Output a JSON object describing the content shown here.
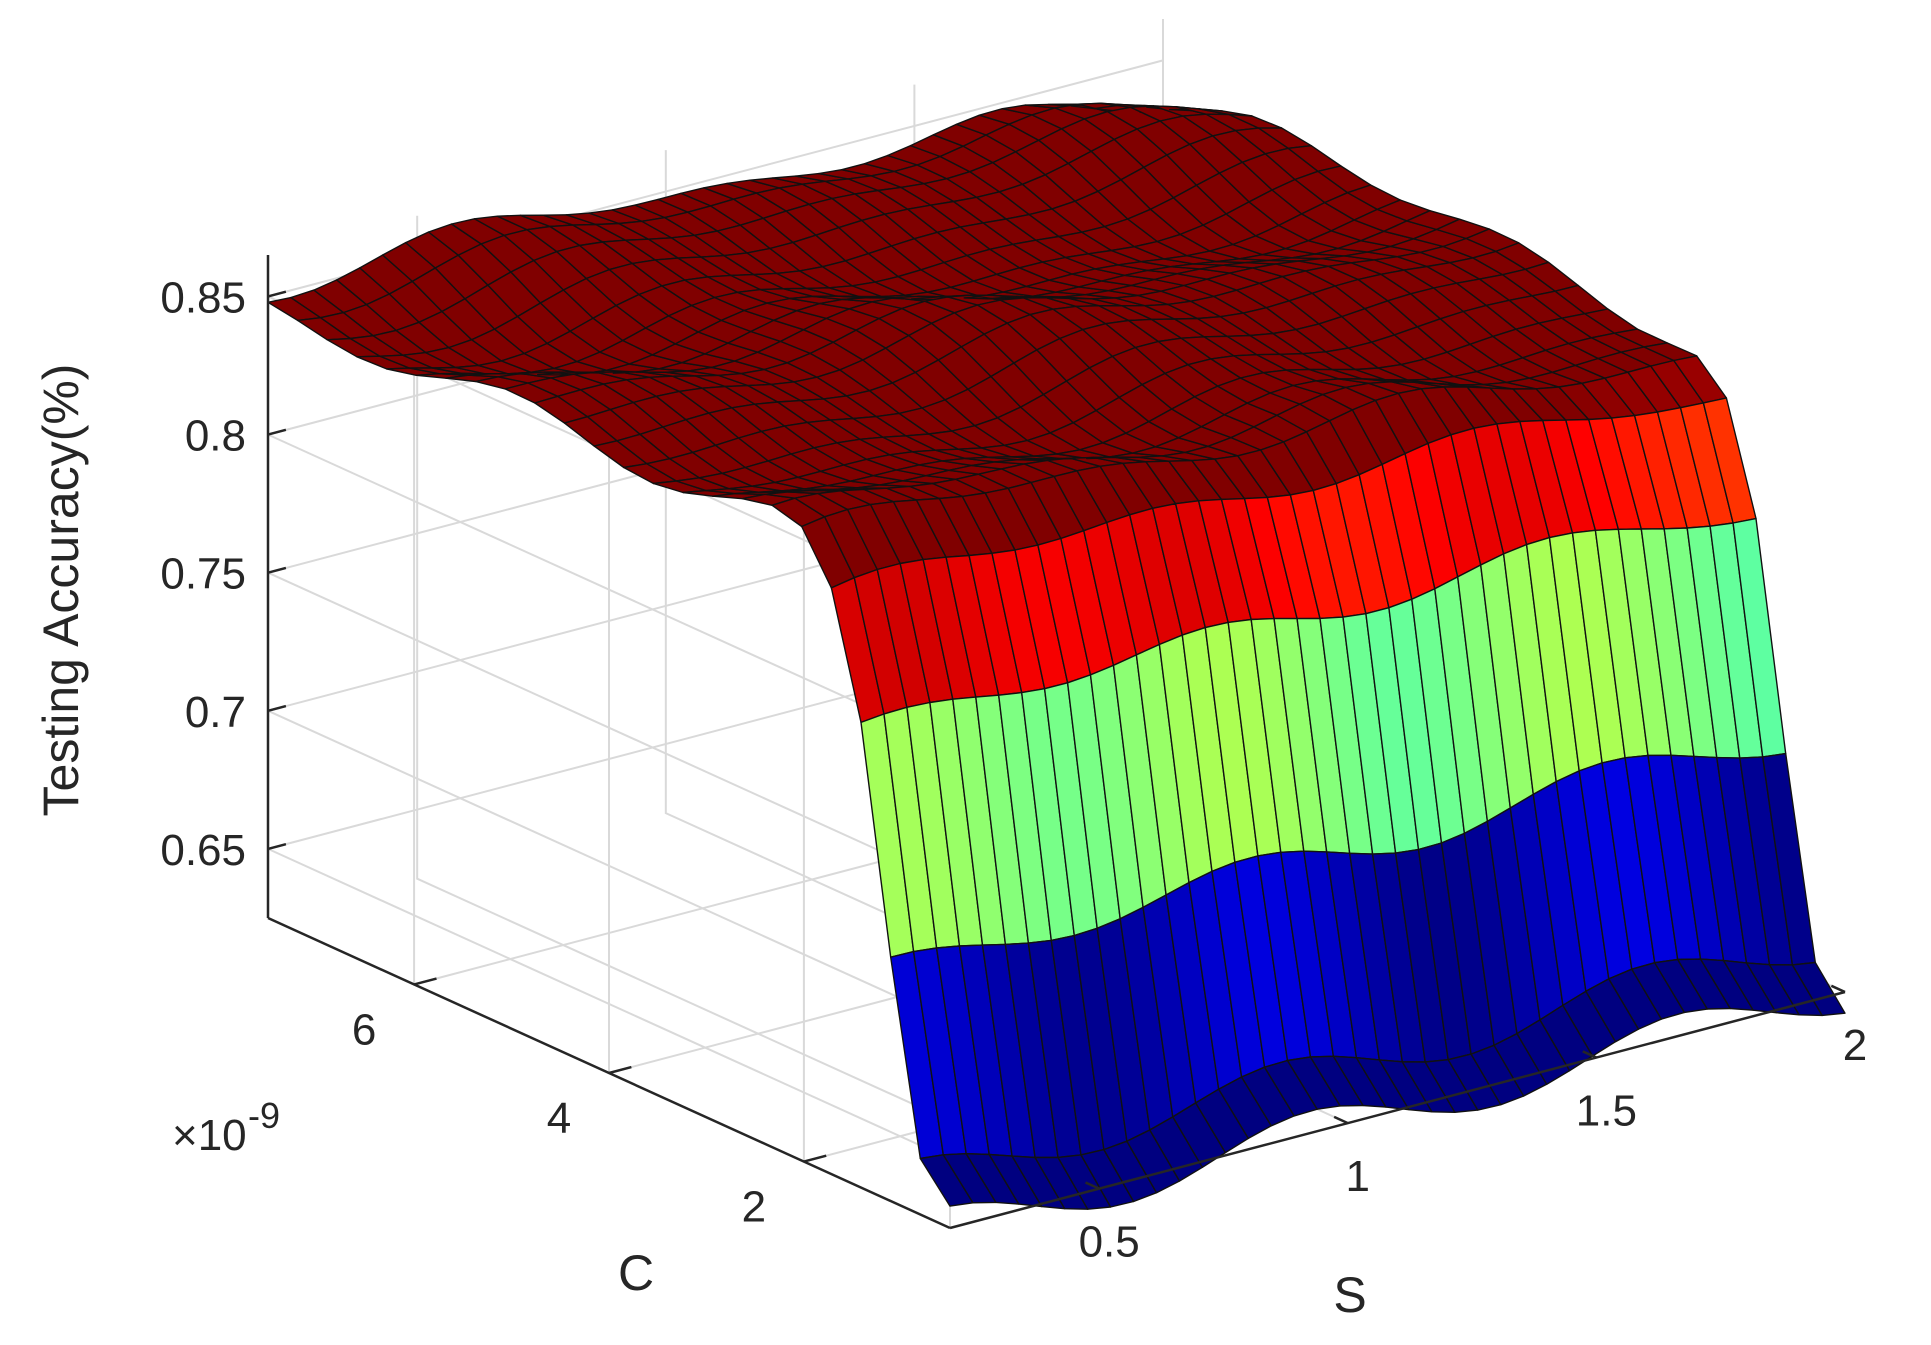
{
  "chart_data": {
    "type": "surface",
    "xlabel": "S",
    "ylabel": "C",
    "zlabel": "Testing Accuracy(%)",
    "x_ticks": [
      {
        "value": 0.5,
        "label": "0.5"
      },
      {
        "value": 1,
        "label": "1"
      },
      {
        "value": 1.5,
        "label": "1.5"
      },
      {
        "value": 2,
        "label": "2"
      }
    ],
    "y_ticks": [
      {
        "value": 2,
        "label": "2"
      },
      {
        "value": 4,
        "label": "4"
      },
      {
        "value": 6,
        "label": "6"
      }
    ],
    "y_exponent_label": "×10",
    "y_exponent_power": "-9",
    "z_ticks": [
      {
        "value": 0.65,
        "label": "0.65"
      },
      {
        "value": 0.7,
        "label": "0.7"
      },
      {
        "value": 0.75,
        "label": "0.75"
      },
      {
        "value": 0.8,
        "label": "0.8"
      },
      {
        "value": 0.85,
        "label": "0.85"
      }
    ],
    "xlim": [
      0.2,
      2
    ],
    "ylim": [
      0.5,
      7.5
    ],
    "zlim": [
      0.625,
      0.865
    ],
    "grid": true,
    "colormap": "jet",
    "grid_resolution": {
      "s_count": 40,
      "c_count": 24
    },
    "surface_profile": {
      "high_plateau": 0.85,
      "cliff_floor": 0.625,
      "wall_bands": [
        0.66,
        0.705,
        0.74,
        0.77,
        0.8
      ]
    }
  }
}
